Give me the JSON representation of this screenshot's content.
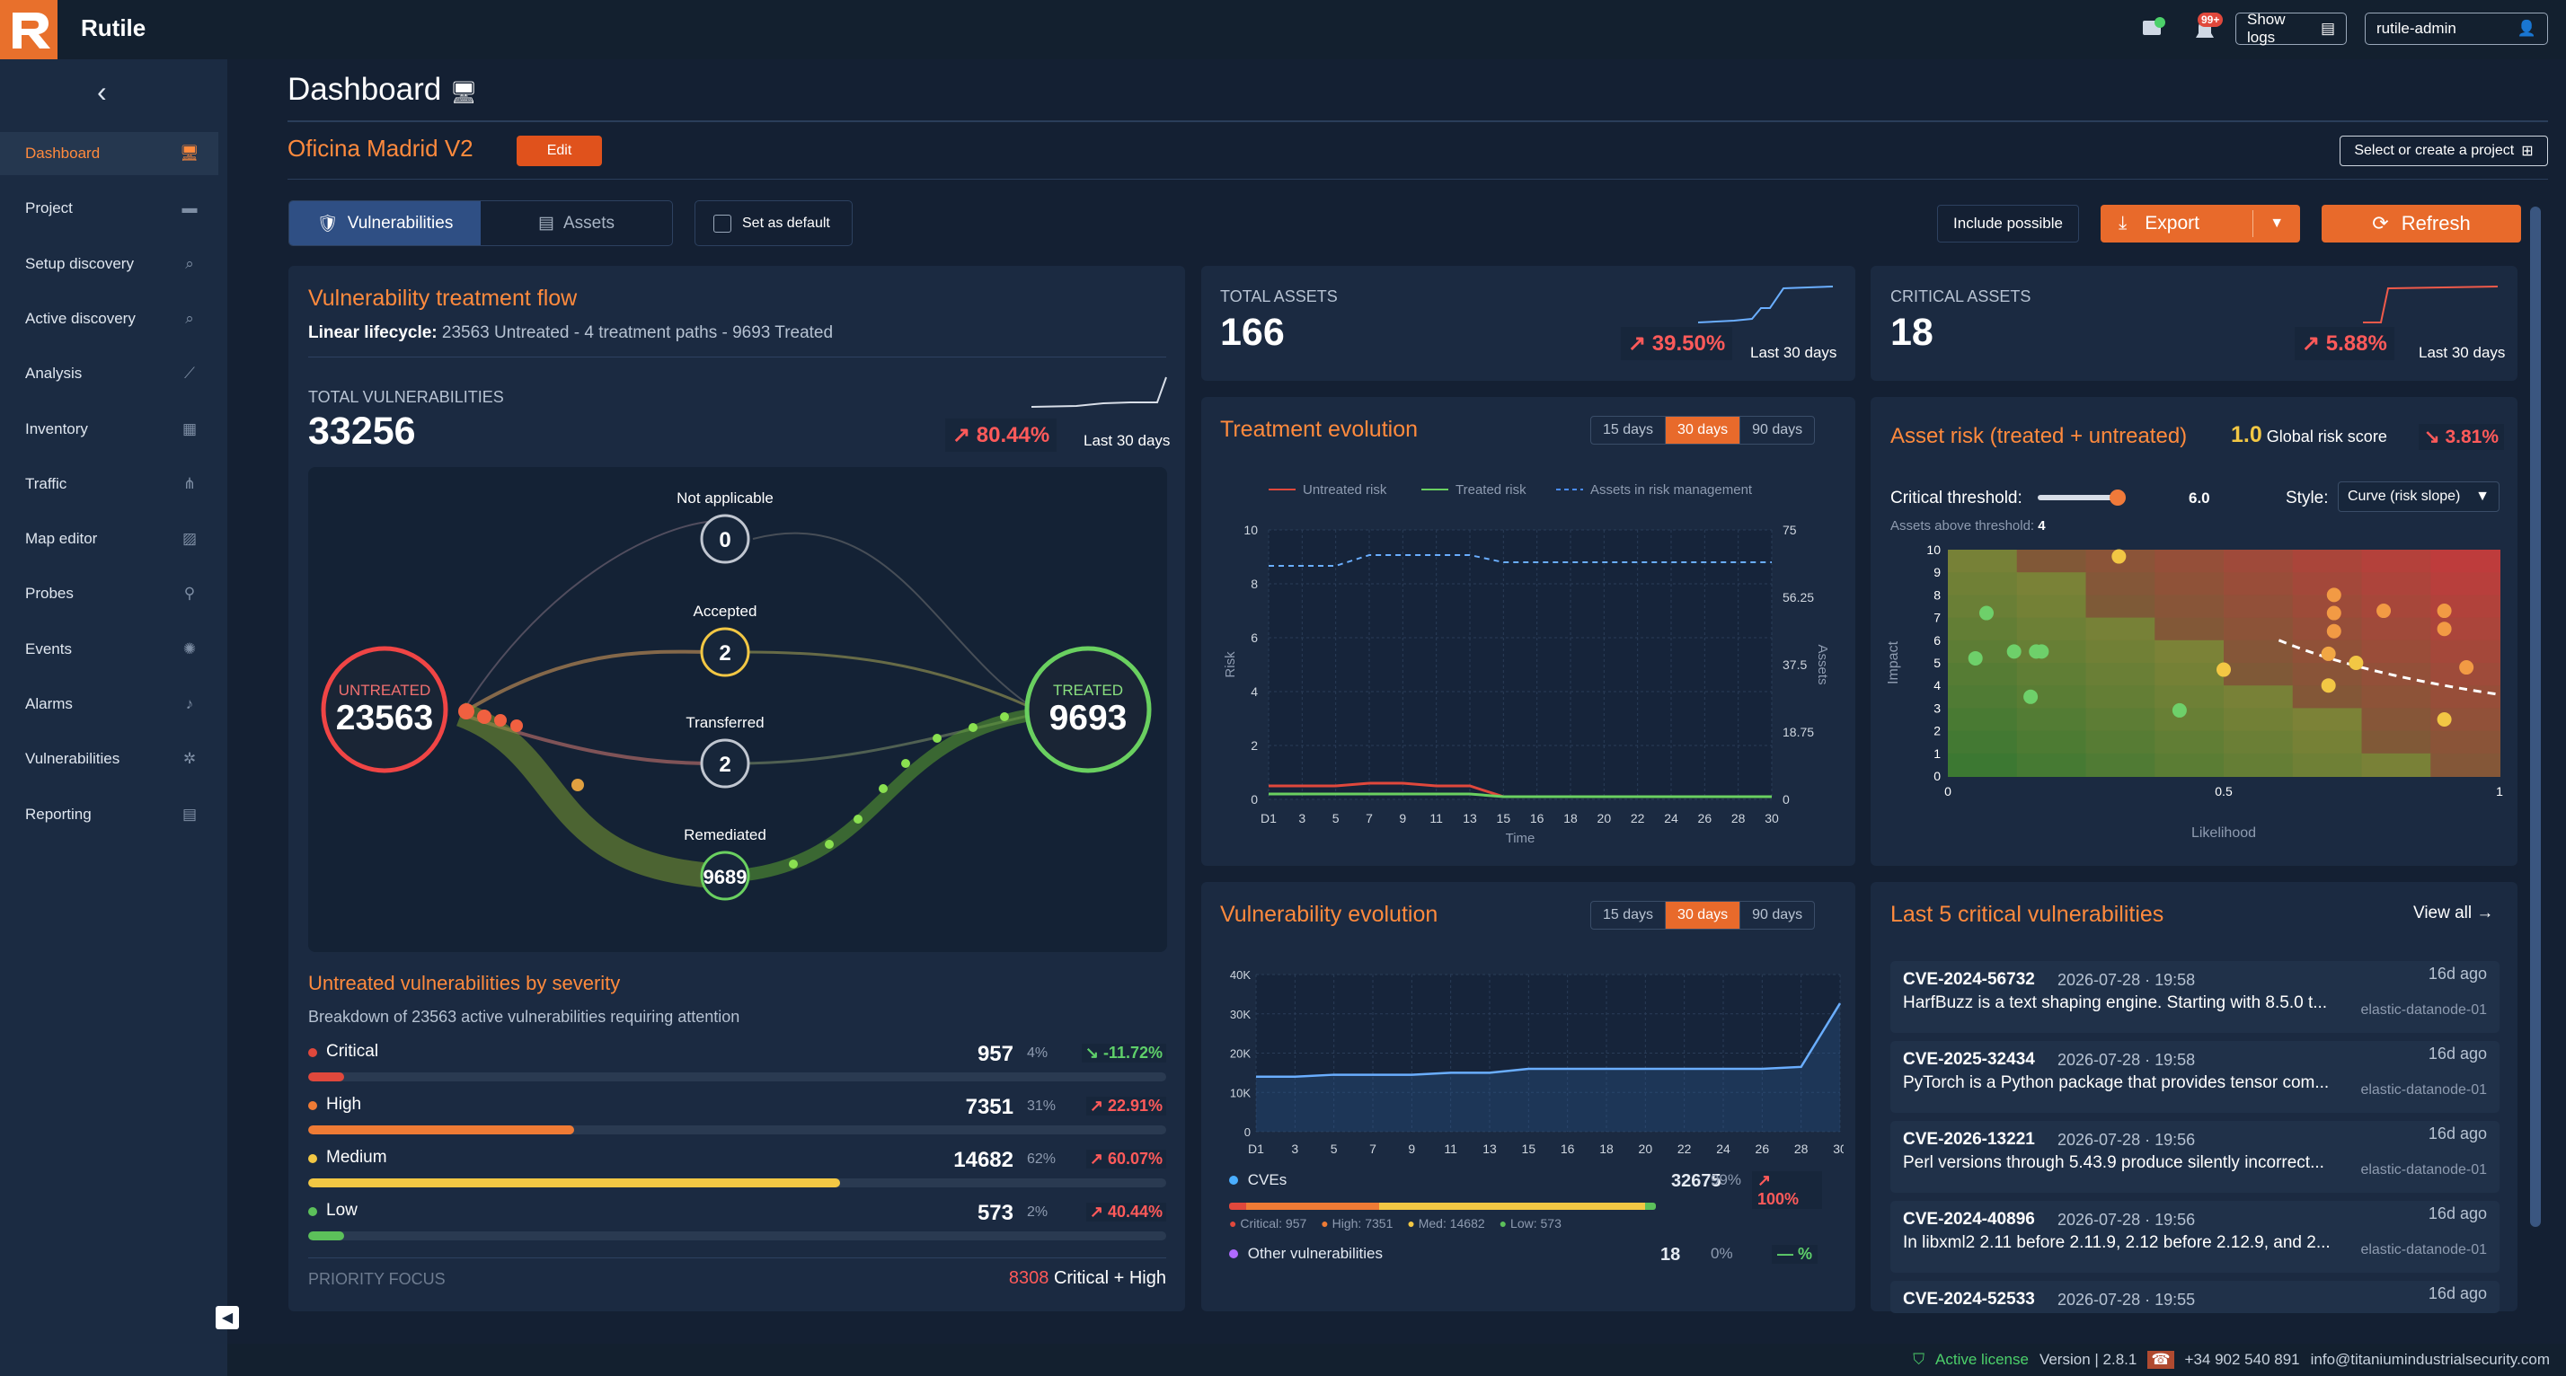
{
  "app": {
    "brand": "Rutile",
    "notif_badge": "99+",
    "show_logs": "Show logs",
    "user": "rutile-admin"
  },
  "sidebar": {
    "items": [
      {
        "label": "Dashboard",
        "icon": "monitor-icon",
        "active": true
      },
      {
        "label": "Project",
        "icon": "folder-icon"
      },
      {
        "label": "Setup discovery",
        "icon": "search-icon"
      },
      {
        "label": "Active discovery",
        "icon": "search-icon"
      },
      {
        "label": "Analysis",
        "icon": "chart-line-icon"
      },
      {
        "label": "Inventory",
        "icon": "boxes-icon"
      },
      {
        "label": "Traffic",
        "icon": "network-icon"
      },
      {
        "label": "Map editor",
        "icon": "map-edit-icon"
      },
      {
        "label": "Probes",
        "icon": "probe-icon"
      },
      {
        "label": "Events",
        "icon": "events-icon"
      },
      {
        "label": "Alarms",
        "icon": "bell-icon"
      },
      {
        "label": "Vulnerabilities",
        "icon": "bug-icon"
      },
      {
        "label": "Reporting",
        "icon": "document-icon"
      }
    ]
  },
  "header": {
    "title": "Dashboard",
    "project": "Oficina Madrid V2",
    "edit": "Edit",
    "select_project": "Select or create a project"
  },
  "toolbar": {
    "tab_vuln": "Vulnerabilities",
    "tab_assets": "Assets",
    "set_default": "Set as default",
    "include_possible": "Include possible",
    "export": "Export",
    "refresh": "Refresh"
  },
  "flow": {
    "title": "Vulnerability treatment flow",
    "lifecycle_label": "Linear lifecycle:",
    "lifecycle_text": "23563 Untreated - 4 treatment paths - 9693 Treated",
    "total_label": "TOTAL VULNERABILITIES",
    "total": "33256",
    "pct": "80.44%",
    "period": "Last 30 days",
    "untreated_label": "UNTREATED",
    "untreated": "23563",
    "treated_label": "TREATED",
    "treated": "9693",
    "paths": [
      {
        "label": "Not applicable",
        "value": "0"
      },
      {
        "label": "Accepted",
        "value": "2"
      },
      {
        "label": "Transferred",
        "value": "2"
      },
      {
        "label": "Remediated",
        "value": "9689"
      }
    ]
  },
  "severity": {
    "title": "Untreated vulnerabilities by severity",
    "subtitle": "Breakdown of 23563 active vulnerabilities requiring attention",
    "rows": [
      {
        "label": "Critical",
        "value": "957",
        "share": "4%",
        "trend": "-11.72%",
        "dir": "down",
        "color": "#e0483c",
        "fill": 0.04
      },
      {
        "label": "High",
        "value": "7351",
        "share": "31%",
        "trend": "22.91%",
        "dir": "up",
        "color": "#ef7b35",
        "fill": 0.31
      },
      {
        "label": "Medium",
        "value": "14682",
        "share": "62%",
        "trend": "60.07%",
        "dir": "up",
        "color": "#f2c744",
        "fill": 0.62
      },
      {
        "label": "Low",
        "value": "573",
        "share": "2%",
        "trend": "40.44%",
        "dir": "up",
        "color": "#5cc05a",
        "fill": 0.02
      }
    ],
    "priority_label": "PRIORITY FOCUS",
    "priority_value": "8308",
    "priority_text": "Critical + High"
  },
  "total_assets": {
    "label": "TOTAL ASSETS",
    "value": "166",
    "pct": "39.50%",
    "period": "Last 30 days"
  },
  "critical_assets": {
    "label": "CRITICAL ASSETS",
    "value": "18",
    "pct": "5.88%",
    "period": "Last 30 days"
  },
  "treatment": {
    "title": "Treatment evolution",
    "ranges": [
      "15 days",
      "30 days",
      "90 days"
    ],
    "legend": [
      "Untreated risk",
      "Treated risk",
      "Assets in risk management"
    ],
    "y_left": "Risk",
    "y_right": "Assets",
    "x_label": "Time"
  },
  "asset_risk": {
    "title": "Asset risk (treated + untreated)",
    "score": "1.0",
    "score_label": "Global risk score",
    "pct": "3.81%",
    "threshold_label": "Critical threshold:",
    "threshold": "6.0",
    "style_label": "Style:",
    "style_value": "Curve (risk slope)",
    "above_label": "Assets above threshold:",
    "above_value": "4",
    "x_label": "Likelihood",
    "y_label": "Impact"
  },
  "vuln_evo": {
    "title": "Vulnerability evolution",
    "ranges": [
      "15 days",
      "30 days",
      "90 days"
    ],
    "cves_label": "CVEs",
    "cves_value": "32675",
    "cves_share": "99%",
    "cves_trend": "100%",
    "breakdown": [
      "Critical: 957",
      "High: 7351",
      "Med: 14682",
      "Low: 573"
    ],
    "other_label": "Other vulnerabilities",
    "other_value": "18",
    "other_share": "0%",
    "other_trend": "— %"
  },
  "last5": {
    "title": "Last 5 critical vulnerabilities",
    "view_all": "View all",
    "items": [
      {
        "cve": "CVE-2024-56732",
        "date": "2026-07-28 · 19:58",
        "ago": "16d ago",
        "desc": "HarfBuzz is a text shaping engine. Starting with 8.5.0 t...",
        "host": "elastic-datanode-01"
      },
      {
        "cve": "CVE-2025-32434",
        "date": "2026-07-28 · 19:58",
        "ago": "16d ago",
        "desc": "PyTorch is a Python package that provides tensor com...",
        "host": "elastic-datanode-01"
      },
      {
        "cve": "CVE-2026-13221",
        "date": "2026-07-28 · 19:56",
        "ago": "16d ago",
        "desc": "Perl versions through 5.43.9 produce silently incorrect...",
        "host": "elastic-datanode-01"
      },
      {
        "cve": "CVE-2024-40896",
        "date": "2026-07-28 · 19:56",
        "ago": "16d ago",
        "desc": "In libxml2 2.11 before 2.11.9, 2.12 before 2.12.9, and 2...",
        "host": "elastic-datanode-01"
      },
      {
        "cve": "CVE-2024-52533",
        "date": "2026-07-28 · 19:55",
        "ago": "16d ago",
        "desc": "",
        "host": ""
      }
    ]
  },
  "footer": {
    "license": "Active license",
    "version": "Version | 2.8.1",
    "phone": "+34 902 540 891",
    "email": "info@titaniumindustrialsecurity.com"
  },
  "chart_data": [
    {
      "type": "line",
      "title": "Treatment evolution",
      "x": [
        "D1",
        "3",
        "5",
        "7",
        "9",
        "11",
        "13",
        "15",
        "16",
        "18",
        "20",
        "22",
        "24",
        "26",
        "28",
        "30"
      ],
      "series": [
        {
          "name": "Untreated risk",
          "axis": "left",
          "values": [
            0.5,
            0.5,
            0.5,
            0.6,
            0.6,
            0.5,
            0.5,
            0.1,
            0.1,
            0.1,
            0.1,
            0.1,
            0.1,
            0.1,
            0.1,
            0.1
          ]
        },
        {
          "name": "Treated risk",
          "axis": "left",
          "values": [
            0.2,
            0.2,
            0.2,
            0.2,
            0.2,
            0.2,
            0.2,
            0.1,
            0.1,
            0.1,
            0.1,
            0.1,
            0.1,
            0.1,
            0.1,
            0.1
          ]
        },
        {
          "name": "Assets in risk management",
          "axis": "right",
          "values": [
            65,
            65,
            65,
            68,
            68,
            68,
            68,
            66,
            66,
            66,
            66,
            66,
            66,
            66,
            66,
            66
          ]
        }
      ],
      "ylabel": "Risk",
      "y2label": "Assets",
      "xlabel": "Time",
      "ylim": [
        0,
        10
      ],
      "y2lim": [
        0,
        75
      ],
      "y_ticks": [
        0,
        2,
        4,
        6,
        8,
        10
      ],
      "y2_ticks": [
        "0",
        "18.75",
        "37.5",
        "56.25",
        "75"
      ],
      "legend": "top",
      "grid": true
    },
    {
      "type": "area",
      "title": "Vulnerability evolution",
      "x": [
        "D1",
        "3",
        "5",
        "7",
        "9",
        "11",
        "13",
        "15",
        "16",
        "18",
        "20",
        "22",
        "24",
        "26",
        "28",
        "30"
      ],
      "series": [
        {
          "name": "CVEs",
          "values": [
            14000,
            14000,
            14500,
            14500,
            14500,
            15000,
            15000,
            16000,
            16000,
            16000,
            16000,
            16000,
            16000,
            16000,
            16500,
            32675
          ]
        }
      ],
      "ylim": [
        0,
        40000
      ],
      "y_ticks": [
        "0",
        "10K",
        "20K",
        "30K",
        "40K"
      ],
      "grid": true
    },
    {
      "type": "scatter",
      "title": "Asset risk (treated + untreated)",
      "xlabel": "Likelihood",
      "ylabel": "Impact",
      "xlim": [
        0,
        1
      ],
      "ylim": [
        0,
        10
      ],
      "x_ticks": [
        "0",
        "0.5",
        "1"
      ],
      "y_ticks": [
        0,
        1,
        2,
        3,
        4,
        5,
        6,
        7,
        8,
        9,
        10
      ],
      "threshold": 6.0,
      "points": [
        {
          "x": 0.05,
          "y": 5.2,
          "c": "#6ed06a"
        },
        {
          "x": 0.07,
          "y": 7.2,
          "c": "#6ed06a"
        },
        {
          "x": 0.12,
          "y": 5.5,
          "c": "#6ed06a"
        },
        {
          "x": 0.16,
          "y": 5.5,
          "c": "#6ed06a"
        },
        {
          "x": 0.17,
          "y": 5.5,
          "c": "#6ed06a"
        },
        {
          "x": 0.15,
          "y": 3.5,
          "c": "#6ed06a"
        },
        {
          "x": 0.42,
          "y": 2.9,
          "c": "#6ed06a"
        },
        {
          "x": 0.31,
          "y": 9.7,
          "c": "#f2c744"
        },
        {
          "x": 0.5,
          "y": 4.7,
          "c": "#f2c744"
        },
        {
          "x": 0.69,
          "y": 4.0,
          "c": "#f2c744"
        },
        {
          "x": 0.74,
          "y": 5.0,
          "c": "#f2c744"
        },
        {
          "x": 0.69,
          "y": 5.4,
          "c": "#f2a744"
        },
        {
          "x": 0.7,
          "y": 6.4,
          "c": "#f29a44"
        },
        {
          "x": 0.7,
          "y": 7.2,
          "c": "#f29a44"
        },
        {
          "x": 0.7,
          "y": 8.0,
          "c": "#f29a44"
        },
        {
          "x": 0.79,
          "y": 7.3,
          "c": "#f29a44"
        },
        {
          "x": 0.9,
          "y": 7.3,
          "c": "#f29a44"
        },
        {
          "x": 0.9,
          "y": 6.5,
          "c": "#f29a44"
        },
        {
          "x": 0.94,
          "y": 4.8,
          "c": "#f29a44"
        },
        {
          "x": 0.9,
          "y": 2.5,
          "c": "#f2c744"
        }
      ]
    }
  ]
}
